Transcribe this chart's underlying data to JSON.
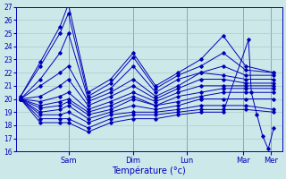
{
  "xlabel": "Température (°c)",
  "ylim": [
    16,
    27
  ],
  "yticks": [
    16,
    17,
    18,
    19,
    20,
    21,
    22,
    23,
    24,
    25,
    26,
    27
  ],
  "background_color": "#cce8e8",
  "grid_color": "#aacccc",
  "line_color": "#0000bb",
  "xtick_labels": [
    "Sam",
    "Dim",
    "Lun",
    "Mar",
    "Mer"
  ],
  "ensembles_x": [
    [
      0,
      0.35,
      0.7,
      0.85,
      1.2,
      1.6,
      2.0,
      2.4,
      2.8,
      3.2,
      3.6,
      4.0,
      4.5
    ],
    [
      0,
      0.35,
      0.7,
      0.85,
      1.2,
      1.6,
      2.0,
      2.4,
      2.8,
      3.2,
      3.6,
      4.0,
      4.5
    ],
    [
      0,
      0.35,
      0.7,
      0.85,
      1.2,
      1.6,
      2.0,
      2.4,
      2.8,
      3.2,
      3.6,
      4.0,
      4.5
    ],
    [
      0,
      0.35,
      0.7,
      0.85,
      1.2,
      1.6,
      2.0,
      2.4,
      2.8,
      3.2,
      3.6,
      4.0,
      4.5
    ],
    [
      0,
      0.35,
      0.7,
      0.85,
      1.2,
      1.6,
      2.0,
      2.4,
      2.8,
      3.2,
      3.6,
      4.0,
      4.5
    ],
    [
      0,
      0.35,
      0.7,
      0.85,
      1.2,
      1.6,
      2.0,
      2.4,
      2.8,
      3.2,
      3.6,
      4.0,
      4.5
    ],
    [
      0,
      0.35,
      0.7,
      0.85,
      1.2,
      1.6,
      2.0,
      2.4,
      2.8,
      3.2,
      3.6,
      4.0,
      4.5
    ],
    [
      0,
      0.35,
      0.7,
      0.85,
      1.2,
      1.6,
      2.0,
      2.4,
      2.8,
      3.2,
      3.6,
      4.0,
      4.5
    ],
    [
      0,
      0.35,
      0.7,
      0.85,
      1.2,
      1.6,
      2.0,
      2.4,
      2.8,
      3.2,
      3.6,
      4.0,
      4.5
    ],
    [
      0,
      0.35,
      0.7,
      0.85,
      1.2,
      1.6,
      2.0,
      2.4,
      2.8,
      3.2,
      3.6,
      4.0,
      4.5
    ],
    [
      0,
      0.35,
      0.7,
      0.85,
      1.2,
      1.6,
      2.0,
      2.4,
      2.8,
      3.2,
      3.6,
      4.0,
      4.5
    ],
    [
      0,
      0.35,
      0.7,
      0.85,
      1.2,
      1.6,
      2.0,
      2.4,
      2.8,
      3.2,
      3.6,
      4.05,
      4.1,
      4.2,
      4.3,
      4.4,
      4.5
    ]
  ],
  "ensembles_y": [
    [
      20.2,
      22.8,
      25.5,
      27.2,
      20.5,
      21.5,
      23.5,
      21.0,
      22.0,
      23.0,
      24.8,
      22.5,
      22.0
    ],
    [
      20.2,
      22.5,
      25.0,
      26.5,
      20.2,
      21.2,
      23.2,
      20.8,
      21.8,
      22.5,
      23.5,
      22.2,
      22.0
    ],
    [
      20.0,
      21.5,
      23.5,
      25.0,
      20.0,
      20.8,
      22.5,
      20.5,
      21.5,
      22.0,
      22.5,
      21.8,
      21.8
    ],
    [
      20.0,
      21.0,
      22.0,
      22.5,
      19.8,
      20.5,
      21.5,
      20.2,
      21.0,
      22.0,
      21.8,
      21.5,
      21.5
    ],
    [
      20.0,
      20.2,
      21.0,
      21.5,
      19.5,
      20.2,
      21.0,
      20.0,
      20.8,
      21.5,
      21.5,
      21.2,
      21.2
    ],
    [
      20.0,
      19.8,
      20.2,
      20.5,
      19.2,
      19.8,
      20.5,
      19.8,
      20.5,
      21.0,
      21.0,
      21.0,
      21.0
    ],
    [
      20.0,
      19.5,
      19.8,
      20.0,
      19.0,
      19.5,
      20.2,
      19.5,
      20.2,
      20.5,
      20.8,
      20.8,
      20.8
    ],
    [
      20.0,
      19.3,
      19.5,
      19.8,
      18.8,
      19.2,
      20.0,
      19.5,
      19.8,
      20.2,
      20.5,
      20.5,
      20.5
    ],
    [
      20.0,
      19.0,
      19.2,
      19.5,
      18.5,
      19.0,
      19.5,
      19.2,
      19.5,
      20.0,
      20.0,
      20.0,
      20.0
    ],
    [
      20.0,
      18.8,
      18.8,
      19.0,
      18.2,
      18.8,
      19.0,
      19.0,
      19.2,
      19.5,
      19.5,
      19.5,
      19.2
    ],
    [
      20.0,
      18.5,
      18.5,
      18.5,
      17.8,
      18.5,
      18.8,
      18.8,
      19.0,
      19.2,
      19.2,
      19.2,
      19.0
    ],
    [
      20.0,
      18.2,
      18.2,
      18.2,
      17.5,
      18.2,
      18.5,
      18.5,
      18.8,
      19.0,
      19.0,
      24.5,
      20.5,
      18.8,
      17.2,
      16.2,
      17.8
    ]
  ],
  "xlim": [
    -0.08,
    4.65
  ],
  "xtick_positions": [
    0.85,
    2.0,
    2.95,
    4.0,
    4.5
  ]
}
